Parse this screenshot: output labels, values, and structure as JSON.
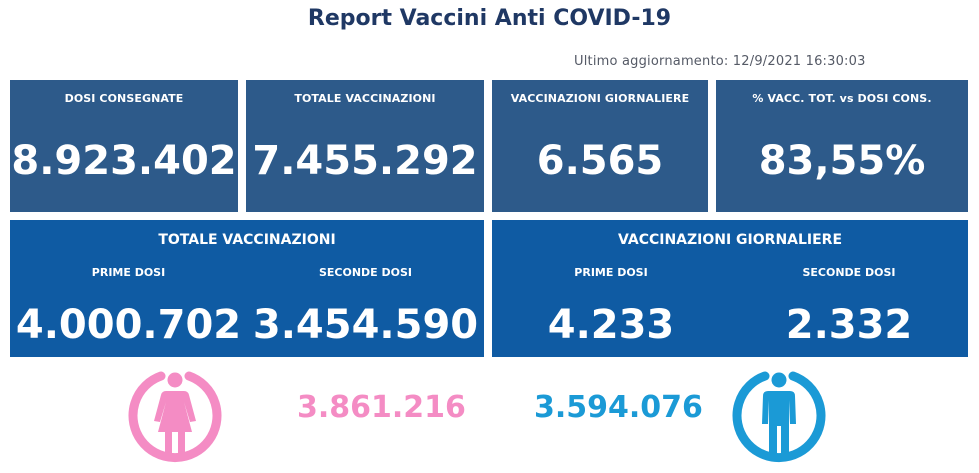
{
  "title": "Report Vaccini Anti COVID-19",
  "updated": "Ultimo aggiornamento: 12/9/2021  16:30:03",
  "cards": [
    {
      "label": "DOSI  CONSEGNATE",
      "value": "8.923.402"
    },
    {
      "label": "TOTALE VACCINAZIONI",
      "value": "7.455.292"
    },
    {
      "label": "VACCINAZIONI GIORNALIERE",
      "value": "6.565"
    },
    {
      "label": "% VACC. TOT. vs DOSI CONS.",
      "value": "83,55%"
    }
  ],
  "panels": [
    {
      "title": "TOTALE VACCINAZIONI",
      "first_label": "PRIME DOSI",
      "first_value": "4.000.702",
      "second_label": "SECONDE DOSI",
      "second_value": "3.454.590"
    },
    {
      "title": "VACCINAZIONI GIORNALIERE",
      "first_label": "PRIME DOSI",
      "first_value": "4.233",
      "second_label": "SECONDE DOSI",
      "second_value": "2.332"
    }
  ],
  "gender": {
    "female": {
      "icon": "female-person-icon",
      "value": "3.861.216",
      "color": "#f48cc4"
    },
    "male": {
      "icon": "male-person-icon",
      "value": "3.594.076",
      "color": "#1b9ad6"
    }
  },
  "colors": {
    "title": "#1f3864",
    "card_bg": "#2d5a8a",
    "panel_bg": "#0f5ba3"
  }
}
